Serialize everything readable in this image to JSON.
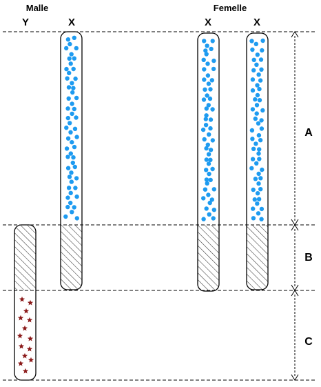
{
  "labels": {
    "male": "Malle",
    "female": "Femelle",
    "y": "Y",
    "x": "X"
  },
  "regions": {
    "a": "A",
    "b": "B",
    "c": "C"
  },
  "colors": {
    "dot": "#1e9bf0",
    "star": "#8b1a1a",
    "outline": "#000000",
    "hatch": "#333333"
  },
  "marks": {
    "x_chromosome": "blue-dot",
    "y_chromosome": "red-star"
  }
}
